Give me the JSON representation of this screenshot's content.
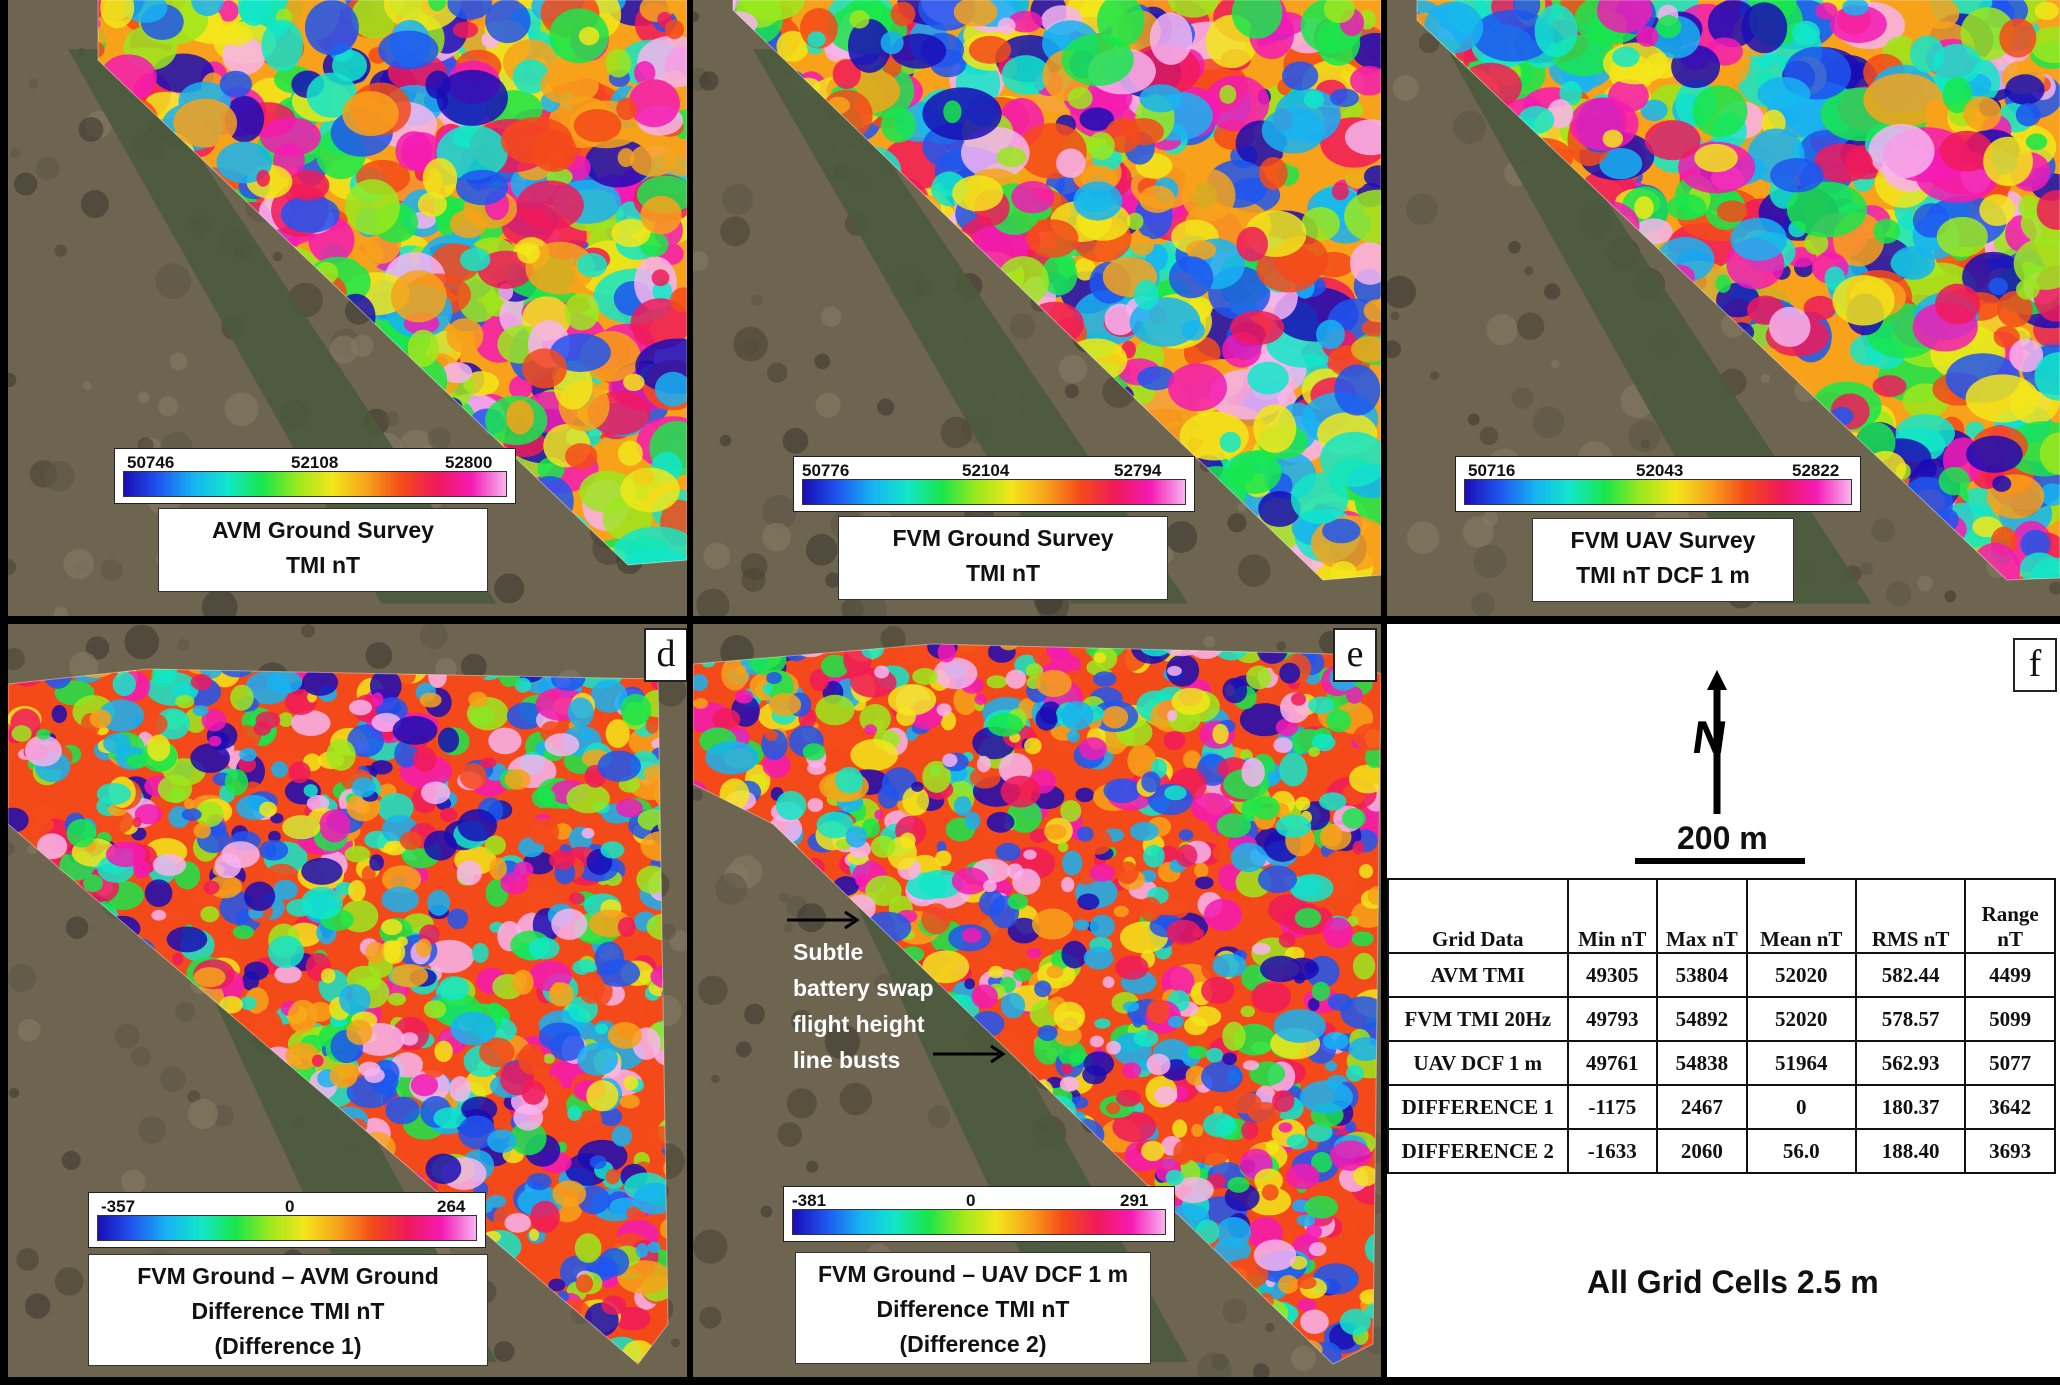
{
  "panels": {
    "a": {
      "scale_min": "50746",
      "scale_mid": "52108",
      "scale_max": "52800",
      "title_line1": "AVM Ground Survey",
      "title_line2": "TMI nT"
    },
    "b": {
      "scale_min": "50776",
      "scale_mid": "52104",
      "scale_max": "52794",
      "title_line1": "FVM Ground Survey",
      "title_line2": "TMI nT"
    },
    "c": {
      "scale_min": "50716",
      "scale_mid": "52043",
      "scale_max": "52822",
      "title_line1": "FVM UAV Survey",
      "title_line2": "TMI nT DCF 1 m"
    },
    "d": {
      "letter": "d",
      "scale_min": "-357",
      "scale_mid": "0",
      "scale_max": "264",
      "title_line1": "FVM Ground – AVM Ground",
      "title_line2": "Difference TMI nT",
      "title_line3": "(Difference 1)"
    },
    "e": {
      "letter": "e",
      "scale_min": "-381",
      "scale_mid": "0",
      "scale_max": "291",
      "title_line1": "FVM Ground – UAV DCF 1 m",
      "title_line2": "Difference TMI nT",
      "title_line3": "(Difference 2)",
      "annotation": [
        "Subtle",
        "battery swap",
        "flight height",
        "line busts"
      ]
    },
    "f": {
      "letter": "f",
      "north_label": "N",
      "scale_bar_label": "200 m",
      "footer": "All Grid Cells 2.5 m"
    }
  },
  "table": {
    "headers": [
      "Grid  Data",
      "Min nT",
      "Max nT",
      "Mean nT",
      "RMS nT",
      "Range nT"
    ],
    "rows": [
      [
        "AVM TMI",
        "49305",
        "53804",
        "52020",
        "582.44",
        "4499"
      ],
      [
        "FVM TMI 20Hz",
        "49793",
        "54892",
        "52020",
        "578.57",
        "5099"
      ],
      [
        "UAV  DCF  1 m",
        "49761",
        "54838",
        "51964",
        "562.93",
        "5077"
      ],
      [
        "DIFFERENCE  1",
        "-1175",
        "2467",
        "0",
        "180.37",
        "3642"
      ],
      [
        "DIFFERENCE  2",
        "-1633",
        "2060",
        "56.0",
        "188.40",
        "3693"
      ]
    ]
  },
  "colors": {
    "border": "#000000",
    "background": "#ffffff",
    "arrow": "#000000"
  }
}
